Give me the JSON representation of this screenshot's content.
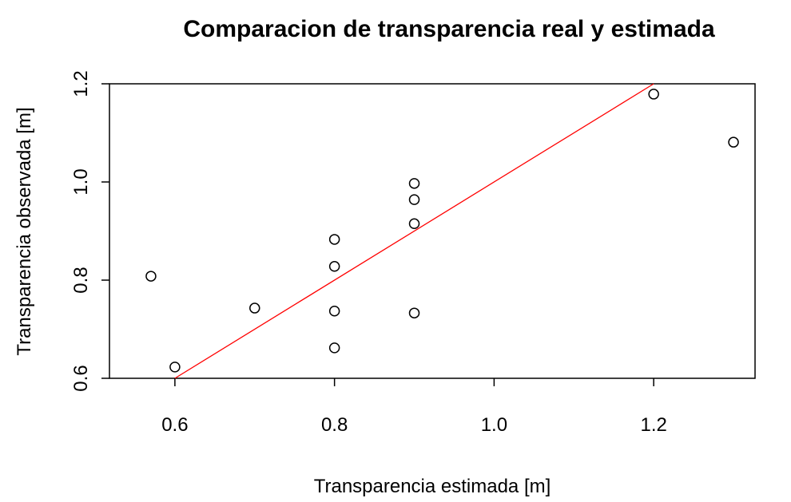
{
  "chart_data": {
    "type": "scatter",
    "title": "Comparacion de transparencia real y estimada",
    "xlabel": "Transparencia estimada [m]",
    "ylabel": "Transparencia observada [m]",
    "series": [
      {
        "color": "#000000",
        "x": [
          0.57,
          0.6,
          0.7,
          0.8,
          0.8,
          0.8,
          0.8,
          0.9,
          0.9,
          0.9,
          0.9,
          1.2,
          1.3
        ],
        "values": [
          0.808,
          0.623,
          0.743,
          0.883,
          0.828,
          0.737,
          0.662,
          0.997,
          0.964,
          0.915,
          0.733,
          1.179,
          1.081
        ]
      }
    ],
    "reference_line": {
      "color": "#ff0000",
      "x": [
        0.6,
        1.2
      ],
      "values": [
        0.6,
        1.2
      ]
    },
    "xlim": [
      0.518,
      1.327
    ],
    "ylim": [
      0.6,
      1.2
    ],
    "xticks": [
      0.6,
      0.8,
      {
        "value": 1,
        "label": "1.0"
      },
      1.2
    ],
    "yticks": [
      0.6,
      0.8,
      {
        "value": 1,
        "label": "1.0"
      },
      1.2
    ]
  }
}
